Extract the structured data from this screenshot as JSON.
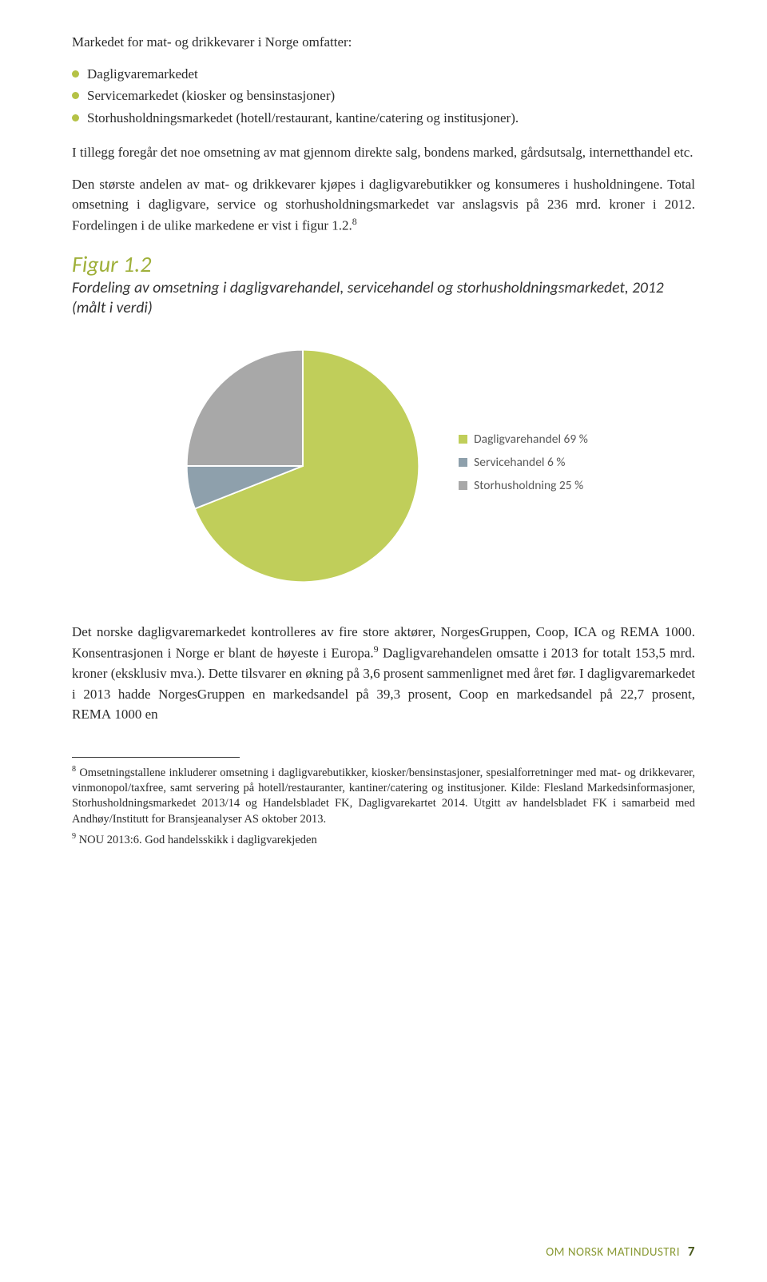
{
  "intro": "Markedet for mat- og drikkevarer i Norge omfatter:",
  "bullets": [
    "Dagligvaremarkedet",
    "Servicemarkedet (kiosker og bensinstasjoner)",
    "Storhusholdningsmarkedet (hotell/restaurant, kantine/catering og institusjoner)."
  ],
  "para2": "I tillegg foregår det noe omsetning av mat gjennom direkte salg, bondens marked, gårdsutsalg, internetthandel etc.",
  "para3_a": "Den største andelen av mat- og drikkevarer kjøpes i dagligvarebutikker og konsumeres i husholdningene. Total omsetning i dagligvare, service og storhusholdningsmarkedet var anslagsvis på 236 mrd. kroner i 2012. Fordelingen i de ulike markedene er vist i figur 1.2.",
  "para3_sup": "8",
  "fig_title": "Figur 1.2",
  "fig_caption": "Fordeling av omsetning i dagligvarehandel, servicehandel og storhusholdningsmarkedet, 2012 (målt i verdi)",
  "chart": {
    "type": "pie",
    "background_color": "#ffffff",
    "slices": [
      {
        "label": "Dagligvarehandel 69 %",
        "value": 69,
        "color": "#c0ce5a"
      },
      {
        "label": "Servicehandel 6 %",
        "value": 6,
        "color": "#8ea0ac"
      },
      {
        "label": "Storhusholdning 25 %",
        "value": 25,
        "color": "#a8a8a8"
      }
    ],
    "legend_font_size": 15.5,
    "legend_color": "#595959",
    "stroke": "#ffffff",
    "stroke_width": 2,
    "start_angle_deg": -90,
    "radius": 150
  },
  "para4_a": "Det norske dagligvaremarkedet kontrolleres av fire store aktører, NorgesGruppen, Coop, ICA og REMA 1000. Konsentrasjonen i Norge er blant de høyeste i Europa.",
  "para4_sup": "9",
  "para4_b": " Dagligvarehandelen omsatte i 2013 for totalt 153,5 mrd. kroner (eksklusiv mva.). Dette tilsvarer en økning på 3,6 prosent sammenlignet med året før. I dagligvaremarkedet i 2013 hadde NorgesGruppen en markedsandel på 39,3 prosent, Coop en markedsandel på 22,7 prosent, REMA 1000 en",
  "footnotes": [
    {
      "num": "8",
      "text": "Omsetningstallene inkluderer omsetning i dagligvarebutikker, kiosker/bensinstasjoner, spesialforretninger med mat- og drikkevarer, vinmonopol/taxfree, samt servering på hotell/restauranter, kantiner/catering og institusjoner. Kilde: Flesland Markedsinformasjoner, Storhusholdningsmarkedet 2013/14 og Handelsbladet FK, Dagligvarekartet 2014. Utgitt av handelsbladet FK i samarbeid med Andhøy/Institutt for Bransjeanalyser AS oktober 2013."
    },
    {
      "num": "9",
      "text": "NOU 2013:6. God handelsskikk i dagligvarekjeden"
    }
  ],
  "footer": {
    "label": "OM NORSK MATINDUSTRI",
    "page": "7"
  }
}
